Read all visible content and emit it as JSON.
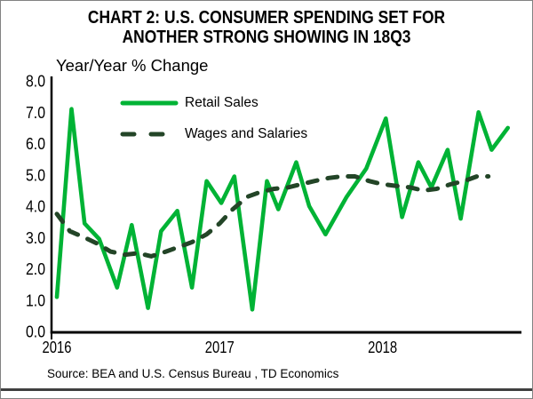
{
  "title": {
    "line1": "CHART 2: U.S. CONSUMER SPENDING SET FOR",
    "line2": "ANOTHER STRONG SHOWING IN 18Q3"
  },
  "source_note": "Source: BEA and U.S. Census Bureau , TD Economics",
  "colors": {
    "retail_green": "#00B335",
    "wages_dark_green": "#234527",
    "axis_black": "#000000",
    "frame_border_gray": "#828282",
    "bottom_rule_gray": "#3F3F3F",
    "background": "#FFFFFF"
  },
  "legend": {
    "retail_label": "Retail Sales",
    "wages_label": "Wages and Salaries"
  },
  "chart_data": {
    "type": "line",
    "title": "CHART 2: U.S. CONSUMER SPENDING SET FOR ANOTHER STRONG SHOWING IN 18Q3",
    "ylabel": "Year/Year % Change",
    "xlabel": "",
    "ylim": [
      0.0,
      8.0
    ],
    "xlim": [
      2016.0,
      2018.85
    ],
    "grid": false,
    "legend_position": "top-left-inside",
    "ytick_labels": [
      "8.0",
      "7.0",
      "6.0",
      "5.0",
      "4.0",
      "3.0",
      "2.0",
      "1.0",
      "0.0"
    ],
    "xtick_labels": [
      "2016",
      "2017",
      "2018"
    ],
    "xtick_years": [
      2016,
      2017,
      2018
    ],
    "x_unit": "decimal_year_monthly",
    "series": [
      {
        "name": "Retail Sales",
        "color": "#00B335",
        "line_style": "solid",
        "points": [
          [
            2016.0,
            1.1
          ],
          [
            2016.09,
            7.1
          ],
          [
            2016.17,
            3.45
          ],
          [
            2016.26,
            2.95
          ],
          [
            2016.37,
            1.4
          ],
          [
            2016.46,
            3.4
          ],
          [
            2016.56,
            0.75
          ],
          [
            2016.64,
            3.2
          ],
          [
            2016.74,
            3.85
          ],
          [
            2016.83,
            1.4
          ],
          [
            2016.92,
            4.8
          ],
          [
            2017.01,
            4.1
          ],
          [
            2017.09,
            4.95
          ],
          [
            2017.2,
            0.7
          ],
          [
            2017.29,
            4.8
          ],
          [
            2017.36,
            3.9
          ],
          [
            2017.47,
            5.4
          ],
          [
            2017.55,
            4.0
          ],
          [
            2017.65,
            3.1
          ],
          [
            2017.78,
            4.3
          ],
          [
            2017.9,
            5.2
          ],
          [
            2018.02,
            6.8
          ],
          [
            2018.12,
            3.65
          ],
          [
            2018.22,
            5.4
          ],
          [
            2018.3,
            4.6
          ],
          [
            2018.4,
            5.8
          ],
          [
            2018.48,
            3.6
          ],
          [
            2018.59,
            7.0
          ],
          [
            2018.67,
            5.8
          ],
          [
            2018.77,
            6.5
          ]
        ]
      },
      {
        "name": "Wages and Salaries",
        "color": "#234527",
        "line_style": "dashed",
        "points": [
          [
            2016.0,
            3.75
          ],
          [
            2016.08,
            3.2
          ],
          [
            2016.17,
            3.0
          ],
          [
            2016.25,
            2.8
          ],
          [
            2016.33,
            2.55
          ],
          [
            2016.42,
            2.45
          ],
          [
            2016.5,
            2.5
          ],
          [
            2016.58,
            2.4
          ],
          [
            2016.67,
            2.55
          ],
          [
            2016.75,
            2.7
          ],
          [
            2016.83,
            2.85
          ],
          [
            2016.92,
            3.1
          ],
          [
            2017.0,
            3.45
          ],
          [
            2017.08,
            3.9
          ],
          [
            2017.17,
            4.3
          ],
          [
            2017.25,
            4.45
          ],
          [
            2017.33,
            4.55
          ],
          [
            2017.42,
            4.6
          ],
          [
            2017.5,
            4.7
          ],
          [
            2017.58,
            4.8
          ],
          [
            2017.67,
            4.9
          ],
          [
            2017.75,
            4.95
          ],
          [
            2017.83,
            4.95
          ],
          [
            2017.92,
            4.8
          ],
          [
            2018.0,
            4.7
          ],
          [
            2018.08,
            4.65
          ],
          [
            2018.17,
            4.6
          ],
          [
            2018.25,
            4.5
          ],
          [
            2018.33,
            4.55
          ],
          [
            2018.42,
            4.7
          ],
          [
            2018.5,
            4.8
          ],
          [
            2018.58,
            4.95
          ],
          [
            2018.65,
            4.95
          ]
        ]
      }
    ]
  }
}
